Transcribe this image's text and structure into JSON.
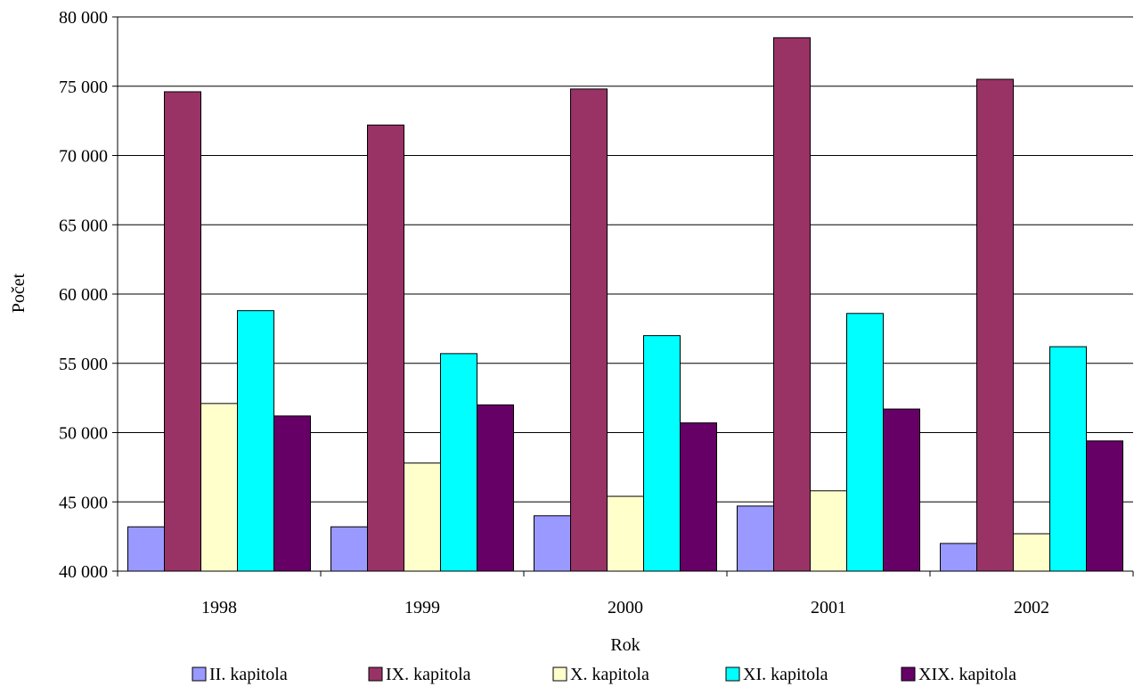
{
  "chart_data": {
    "type": "bar",
    "title": "",
    "xlabel": "Rok",
    "ylabel": "Počet",
    "categories": [
      "1998",
      "1999",
      "2000",
      "2001",
      "2002"
    ],
    "ylim": [
      40000,
      80000
    ],
    "yticks": [
      40000,
      45000,
      50000,
      55000,
      60000,
      65000,
      70000,
      75000,
      80000
    ],
    "ytick_labels": [
      "40 000",
      "45 000",
      "50 000",
      "55 000",
      "60 000",
      "65 000",
      "70 000",
      "75 000",
      "80 000"
    ],
    "grid": true,
    "legend_position": "bottom",
    "series": [
      {
        "name": "II. kapitola",
        "color": "#9999ff",
        "values": [
          43200,
          43200,
          44000,
          44700,
          42000
        ]
      },
      {
        "name": "IX. kapitola",
        "color": "#993366",
        "values": [
          74600,
          72200,
          74800,
          78500,
          75500
        ]
      },
      {
        "name": "X. kapitola",
        "color": "#ffffcc",
        "values": [
          52100,
          47800,
          45400,
          45800,
          42700
        ]
      },
      {
        "name": "XI. kapitola",
        "color": "#00ffff",
        "values": [
          58800,
          55700,
          57000,
          58600,
          56200
        ]
      },
      {
        "name": "XIX. kapitola",
        "color": "#660066",
        "values": [
          51200,
          52000,
          50700,
          51700,
          49400
        ]
      }
    ]
  }
}
